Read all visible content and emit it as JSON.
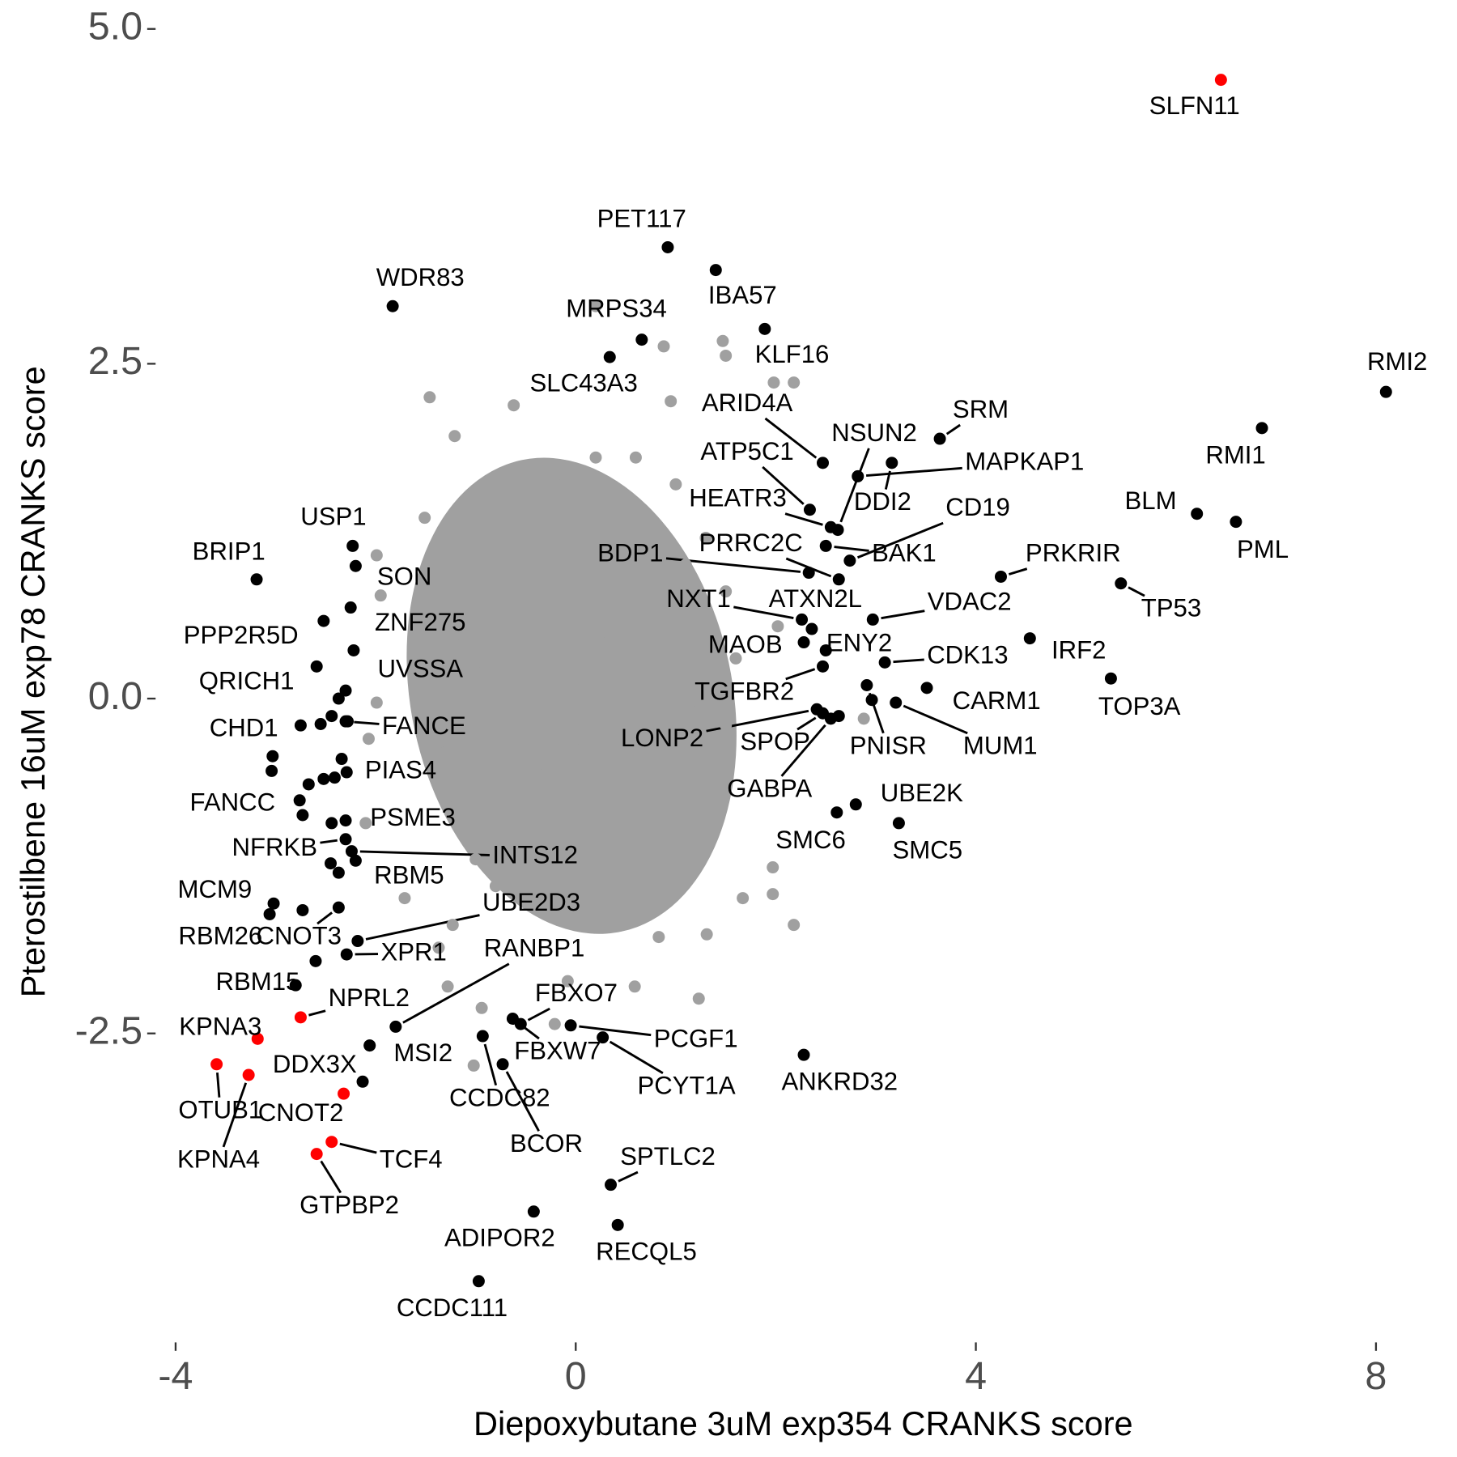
{
  "chart_data": {
    "type": "scatter",
    "xlabel": "Diepoxybutane 3uM exp354 CRANKS score",
    "ylabel": "Pterostilbene 16uM exp78 CRANKS score",
    "xlim": [
      -4.2,
      8.5
    ],
    "ylim": [
      -4.8,
      5.2
    ],
    "xticks": [
      -4,
      0,
      4,
      8
    ],
    "yticks": [
      {
        "value": 5,
        "label": "5.0"
      },
      2.5,
      {
        "value": 0,
        "label": "0.0"
      },
      -2.5
    ],
    "grid": false,
    "series": [
      {
        "color": "#a0a0a0",
        "x": [
          -1.46,
          0.2,
          0.88,
          1.47,
          2.18,
          1.98,
          1.5,
          0.95,
          1.97,
          1.97,
          2.18,
          1.31,
          1.67,
          0.59,
          -1.28,
          -2.06,
          -1.02,
          -0.08,
          -1.21,
          -0.62,
          2.88,
          2.02,
          -1.51,
          -1.99,
          -1.95,
          -1.99,
          -2.07,
          -2.1,
          -1.37,
          -1.23,
          -1.71,
          -0.94,
          -0.21,
          1.23,
          0.83,
          -1.2,
          -1.0,
          -0.8,
          -0.5,
          -0.2,
          0.1,
          0.4,
          0.8,
          1.2,
          1.5,
          1.6,
          1.5,
          1.3,
          1.0,
          0.6,
          0.2,
          -0.2,
          -0.6,
          -0.9,
          -1.2,
          -1.3,
          -1.3,
          -1.0,
          -1.0,
          -0.8,
          -0.6,
          -0.6,
          -0.6,
          -0.5,
          -0.3,
          -0.3,
          -0.3,
          -0.3,
          -0.2,
          0,
          0,
          0,
          0,
          0.1,
          0.3,
          0.3,
          0.3,
          0.4,
          0.6,
          0.6,
          0.6,
          0.7,
          0.9,
          0.9,
          0.9,
          1.2,
          1.2,
          1.1,
          0.2,
          -0.8,
          1.0
        ],
        "y": [
          2.25,
          2.93,
          2.63,
          2.67,
          2.36,
          2.36,
          2.56,
          2.22,
          -1.26,
          -1.46,
          -1.69,
          -1.76,
          -1.49,
          -2.15,
          -2.15,
          -2.59,
          -2.74,
          -2.11,
          1.96,
          2.19,
          -0.15,
          0.54,
          1.35,
          1.07,
          0.77,
          -0.03,
          -0.3,
          -0.93,
          -1.86,
          -1.69,
          -1.49,
          -2.31,
          -2.43,
          -2.24,
          -1.78,
          -0.8,
          -1.2,
          -1.4,
          -1.5,
          -1.3,
          -1.4,
          -1.1,
          -0.9,
          -0.6,
          -0.2,
          0.3,
          0.8,
          1.2,
          1.6,
          1.8,
          1.8,
          1.6,
          1.3,
          0.9,
          0.4,
          0.0,
          -0.4,
          -0.4,
          0.2,
          0.6,
          -0.9,
          -0.3,
          0.3,
          0.9,
          -1.0,
          -0.5,
          0.1,
          0.7,
          1.2,
          -0.9,
          -0.3,
          0.3,
          0.9,
          1.4,
          -0.7,
          -0.1,
          0.5,
          1.1,
          -0.5,
          0.1,
          0.7,
          1.3,
          -0.3,
          0.3,
          0.9,
          -0.1,
          0.5,
          1.0,
          -1.2,
          -1.0,
          -0.6
        ]
      },
      {
        "color": "#000000",
        "x": [
          0.92,
          1.4,
          -1.83,
          0.66,
          1.89,
          0.34,
          8.1,
          6.86,
          3.64,
          2.82,
          3.16,
          2.62,
          2.47,
          2.74,
          2.5,
          2.34,
          2.55,
          2.33,
          2.63,
          6.21,
          6.6,
          4.25,
          5.45,
          2.26,
          2.36,
          2.97,
          2.28,
          2.5,
          4.54,
          3.09,
          5.35,
          3.51,
          2.47,
          2.41,
          2.47,
          2.91,
          3.2,
          2.55,
          2.8,
          2.61,
          3.23,
          2.28,
          -0.55,
          -0.05,
          0.27,
          -0.63,
          -0.93,
          -0.73,
          0.35,
          -0.42,
          0.42,
          -0.97,
          -2.06,
          -2.13,
          -2.8,
          -2.23,
          -2.2,
          -3.19,
          -2.25,
          -2.52,
          -2.22,
          -2.59,
          -2.75,
          -2.3,
          -2.34,
          -2.76,
          -2.3,
          -2.3,
          -2.24,
          -2.2,
          -3.02,
          -3.06,
          -2.37,
          -2.18,
          -2.29,
          -1.8,
          -2.3,
          -2.37,
          -2.28,
          -2.55,
          -2.44,
          -3.03,
          -3.04,
          -2.52,
          -2.41,
          -2.67,
          -2.73,
          -2.44,
          -2.45,
          -2.37,
          -2.73,
          -2.6,
          -2.29,
          2.63,
          2.96
        ],
        "y": [
          3.37,
          3.2,
          2.93,
          2.68,
          2.76,
          2.55,
          2.29,
          2.02,
          1.94,
          1.66,
          1.76,
          1.26,
          1.76,
          1.03,
          1.14,
          1.41,
          1.28,
          0.94,
          0.89,
          1.38,
          1.32,
          0.91,
          0.86,
          0.59,
          0.52,
          0.59,
          0.42,
          0.36,
          0.45,
          0.27,
          0.15,
          0.08,
          0.24,
          -0.08,
          -0.11,
          0.1,
          -0.03,
          -0.15,
          -0.79,
          -0.85,
          -0.93,
          -2.66,
          -2.43,
          -2.44,
          -2.53,
          -2.39,
          -2.52,
          -2.73,
          -3.63,
          -3.83,
          -3.93,
          -4.35,
          -2.59,
          -2.86,
          -2.14,
          1.14,
          0.99,
          0.89,
          0.68,
          0.58,
          0.36,
          0.24,
          -0.2,
          -0.17,
          -0.45,
          -0.76,
          -0.91,
          -1.05,
          -1.14,
          -1.21,
          -1.53,
          -1.61,
          -1.56,
          -1.81,
          -1.91,
          -2.45,
          0.06,
          0.0,
          -0.17,
          -0.19,
          -0.13,
          -0.43,
          -0.54,
          -0.6,
          -0.59,
          -0.64,
          -0.87,
          -0.93,
          -1.23,
          -1.3,
          -1.58,
          -1.96,
          -0.55,
          -0.13,
          -0.01
        ],
        "labels": [
          "PET117",
          "IBA57",
          "WDR83",
          "MRPS34",
          "KLF16",
          "SLC43A3",
          "RMI2",
          "RMI1",
          "SRM",
          "MAPKAP1",
          "DDI2",
          "NSUN2",
          "ARID4A",
          "CD19",
          "BAK1",
          "ATP5C1",
          "HEATR3",
          "BDP1",
          "PRRC2C",
          "BLM",
          "PML",
          "PRKRIR",
          "TP53",
          "NXT1",
          "ATXN2L",
          "VDAC2",
          "MAOB",
          "ENY2",
          "IRF2",
          "CDK13",
          "TOP3A",
          "CARM1",
          "TGFBR2",
          "LONP2",
          "SPOP",
          "PNISR",
          "MUM1",
          "GABPA",
          "UBE2K",
          "SMC6",
          "SMC5",
          "ANKRD32",
          "FBXO7",
          "PCGF1",
          "PCYT1A",
          "FBXW7",
          "CCDC82",
          "BCOR",
          "SPTLC2",
          "ADIPOR2",
          "RECQL5",
          "CCDC111",
          "MSI2",
          "DDX3X",
          "RBM15",
          "USP1",
          "SON",
          "BRIP1",
          "ZNF275",
          "PPP2R5D",
          "UVSSA",
          "QRICH1",
          "CHD1",
          "FANCE",
          "PIAS4",
          "FANCC",
          "PSME3",
          "NFRKB",
          "INTS12",
          "RBM5",
          "MCM9",
          "RBM26",
          "CNOT3",
          "UBE2D3",
          "XPR1",
          "RANBP1",
          null,
          null,
          null,
          null,
          null,
          null,
          null,
          null,
          null,
          null,
          null,
          null,
          null,
          null,
          null,
          null,
          null,
          null,
          null
        ]
      },
      {
        "color": "#ff0000",
        "x": [
          6.45,
          -2.75,
          -3.18,
          -3.59,
          -3.27,
          -2.32,
          -2.44,
          -2.59
        ],
        "y": [
          4.62,
          -2.38,
          -2.54,
          -2.73,
          -2.81,
          -2.95,
          -3.31,
          -3.4
        ],
        "labels": [
          "SLFN11",
          "NPRL2",
          "KPNA3",
          "OTUB1",
          "KPNA4",
          "CNOT2",
          "TCF4",
          "GTPBP2"
        ]
      }
    ]
  }
}
